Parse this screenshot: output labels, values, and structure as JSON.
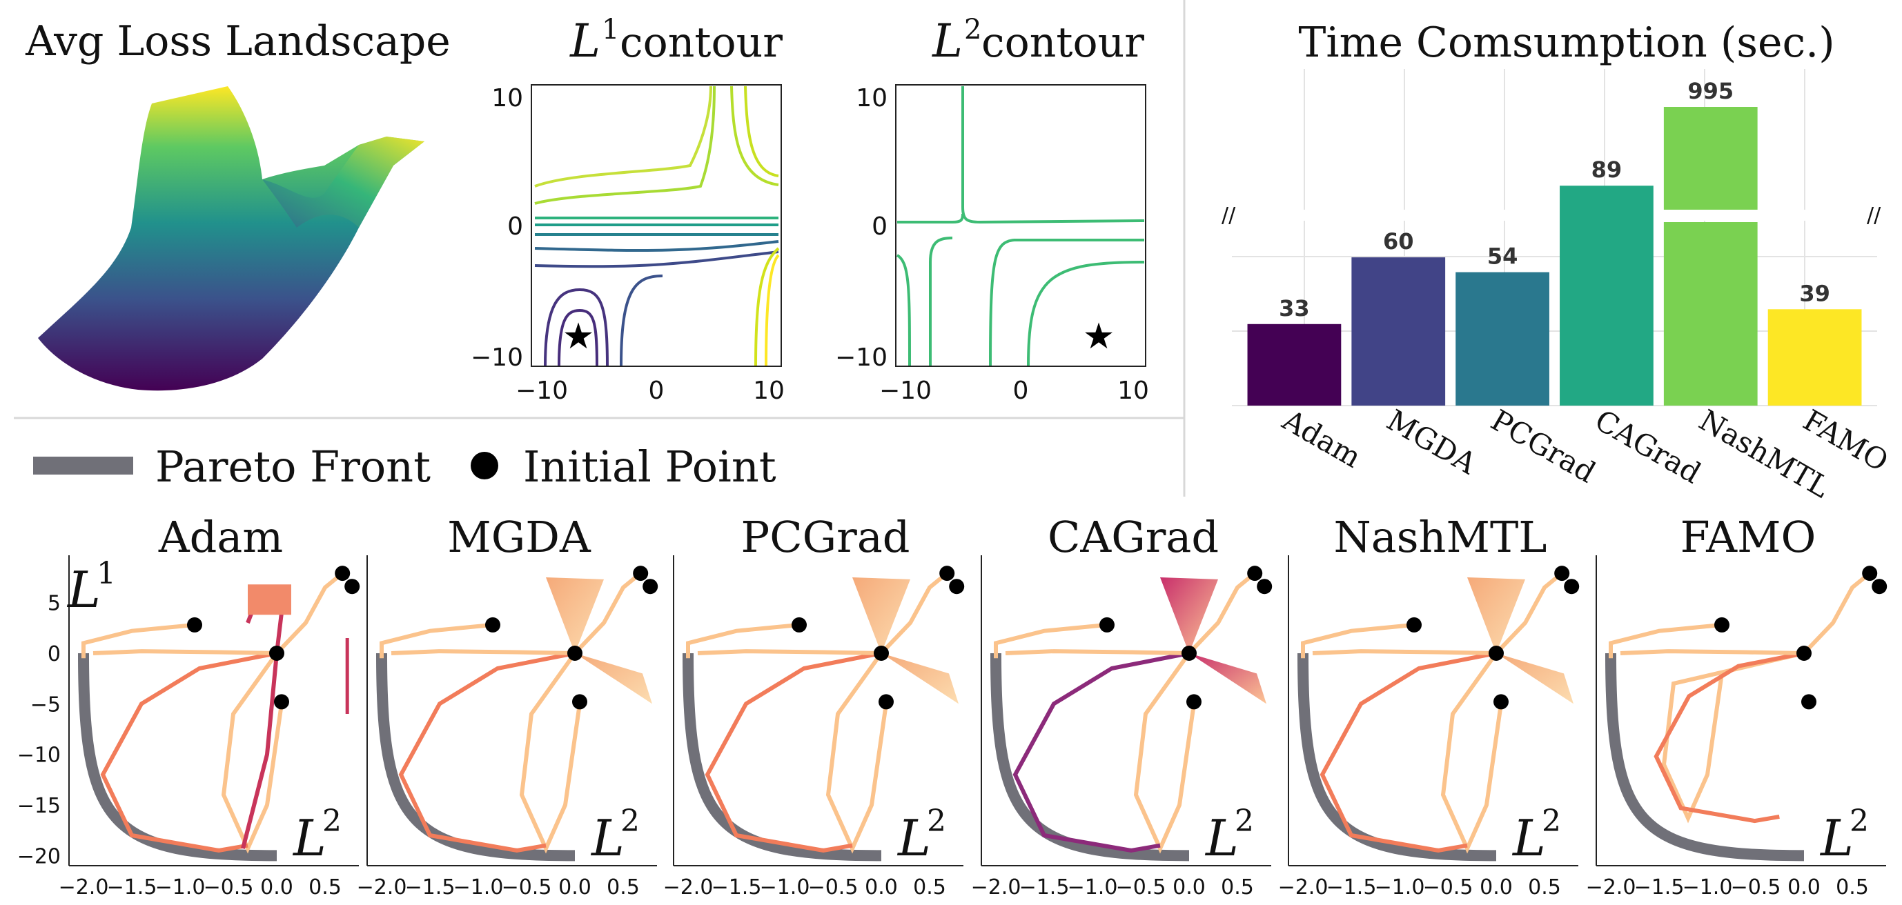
{
  "titles": {
    "landscape": "Avg Loss Landscape",
    "l1_contour_letter": "L",
    "l1_contour_sup": "1",
    "l1_contour_word": "contour",
    "l2_contour_letter": "L",
    "l2_contour_sup": "2",
    "l2_contour_word": "contour",
    "time": "Time Comsumption (sec.)"
  },
  "legend": {
    "pareto_label": "Pareto Front",
    "initial_label": "Initial Point",
    "pareto_color": "#707078"
  },
  "contour_axes": {
    "xticks": [
      "−10",
      "0",
      "10"
    ],
    "yticks": [
      "10",
      "0",
      "−10"
    ],
    "xlim": [
      -11,
      11
    ],
    "ylim": [
      -11,
      11
    ],
    "star_marker": "★",
    "l1_star": [
      -7,
      -8.5
    ],
    "l2_star": [
      7,
      -8.5
    ]
  },
  "chart_data": [
    {
      "type": "bar",
      "title": "Time Comsumption (sec.)",
      "categories": [
        "Adam",
        "MGDA",
        "PCGrad",
        "CAGrad",
        "NashMTL",
        "FAMO"
      ],
      "values": [
        33,
        60,
        54,
        89,
        995,
        39
      ],
      "value_labels": [
        "33",
        "60",
        "54",
        "89",
        "995",
        "39"
      ],
      "colors": [
        "#440154",
        "#414487",
        "#2a788e",
        "#22a884",
        "#7ad151",
        "#fde725"
      ],
      "broken_axis": true,
      "axis_break_mark": "//",
      "ylim_lower": [
        0,
        100
      ],
      "grid": true
    },
    {
      "type": "line",
      "panels": [
        "Adam",
        "MGDA",
        "PCGrad",
        "CAGrad",
        "NashMTL",
        "FAMO"
      ],
      "xlabel_letter": "L",
      "xlabel_sup": "2",
      "ylabel_letter": "L",
      "ylabel_sup": "1",
      "xticks": [
        "−2.0",
        "−1.5",
        "−1.0",
        "−0.5",
        "0.0",
        "0.5"
      ],
      "yticks": [
        "5",
        "0",
        "−5",
        "−10",
        "−15",
        "−20"
      ],
      "xlim": [
        -2.15,
        0.85
      ],
      "ylim": [
        -21,
        9
      ],
      "initial_points": [
        [
          -0.85,
          2.8
        ],
        [
          0.0,
          0.0
        ],
        [
          0.05,
          -4.8
        ],
        [
          0.68,
          7.9
        ],
        [
          0.78,
          6.6
        ]
      ],
      "pareto_front_endpoints": [
        [
          -2.0,
          0.0
        ],
        [
          0.0,
          -20.0
        ]
      ]
    }
  ]
}
